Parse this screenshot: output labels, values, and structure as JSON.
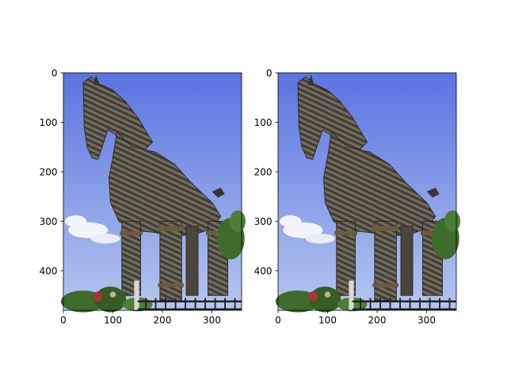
{
  "chart_data": [
    {
      "type": "image",
      "image_width": 360,
      "image_height": 480,
      "xlim": [
        0,
        360
      ],
      "ylim": [
        480,
        0
      ],
      "y_inverted": true,
      "xticks": [
        0,
        100,
        200,
        300
      ],
      "yticks": [
        0,
        100,
        200,
        300,
        400
      ],
      "xlabel": "",
      "ylabel": "",
      "title": "",
      "grid": false
    },
    {
      "type": "image",
      "image_width": 360,
      "image_height": 480,
      "xlim": [
        0,
        360
      ],
      "ylim": [
        480,
        0
      ],
      "y_inverted": true,
      "xticks": [
        0,
        100,
        200,
        300
      ],
      "yticks": [
        0,
        100,
        200,
        300,
        400
      ],
      "xlabel": "",
      "ylabel": "",
      "title": "",
      "grid": false
    }
  ],
  "colors": {
    "sky_top": "#5a74e0",
    "sky_bottom": "#b5c6ef",
    "cloud": "#f2f5fb",
    "wood_dark": "#3a352d",
    "wood_mid": "#5f5a4e",
    "wood_light": "#8a8474",
    "foliage": "#3f6b2c",
    "fence": "#222222"
  },
  "icons": {
    "picture": "trojan-horse-photo"
  }
}
